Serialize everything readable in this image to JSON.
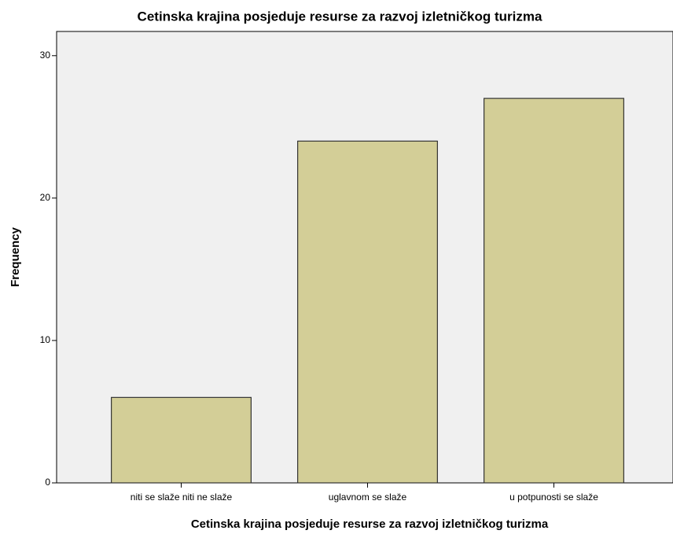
{
  "chart_data": {
    "type": "bar",
    "title": "Cetinska krajina posjeduje resurse za razvoj izletničkog turizma",
    "x_label": "Cetinska krajina posjeduje resurse za razvoj izletničkog turizma",
    "y_label": "Frequency",
    "categories": [
      "niti se slaže niti ne slaže",
      "uglavnom se slaže",
      "u potpunosti se slaže"
    ],
    "values": [
      6,
      24,
      27
    ],
    "color": "#d3ce97",
    "ylim": [
      0,
      31.7
    ],
    "yticks": [
      0,
      10,
      20,
      30
    ]
  }
}
